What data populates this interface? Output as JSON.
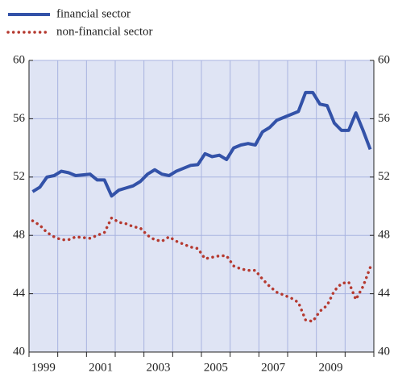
{
  "chart_data": {
    "type": "line",
    "x": [
      1999.125,
      1999.375,
      1999.625,
      1999.875,
      2000.125,
      2000.375,
      2000.625,
      2000.875,
      2001.125,
      2001.375,
      2001.625,
      2001.875,
      2002.125,
      2002.375,
      2002.625,
      2002.875,
      2003.125,
      2003.375,
      2003.625,
      2003.875,
      2004.125,
      2004.375,
      2004.625,
      2004.875,
      2005.125,
      2005.375,
      2005.625,
      2005.875,
      2006.125,
      2006.375,
      2006.625,
      2006.875,
      2007.125,
      2007.375,
      2007.625,
      2007.875,
      2008.125,
      2008.375,
      2008.625,
      2008.875,
      2009.125,
      2009.375,
      2009.625,
      2009.875,
      2010.125,
      2010.375,
      2010.625,
      2010.875
    ],
    "series": [
      {
        "name": "financial sector",
        "color": "#3352a8",
        "dash": "solid",
        "values": [
          51.0,
          51.3,
          52.0,
          52.1,
          52.4,
          52.3,
          52.1,
          52.15,
          52.2,
          51.8,
          51.8,
          50.7,
          51.1,
          51.25,
          51.4,
          51.7,
          52.2,
          52.5,
          52.2,
          52.1,
          52.4,
          52.6,
          52.8,
          52.85,
          53.6,
          53.4,
          53.5,
          53.2,
          54.0,
          54.2,
          54.3,
          54.2,
          55.1,
          55.4,
          55.9,
          56.1,
          56.3,
          56.5,
          57.8,
          57.8,
          57.0,
          56.9,
          55.7,
          55.2,
          55.2,
          56.4,
          55.2,
          53.9
        ]
      },
      {
        "name": "non-financial sector",
        "color": "#b5392f",
        "dash": "dotted",
        "values": [
          49.0,
          48.7,
          48.2,
          47.9,
          47.7,
          47.7,
          47.9,
          47.85,
          47.8,
          48.0,
          48.2,
          49.2,
          48.9,
          48.8,
          48.6,
          48.5,
          48.0,
          47.7,
          47.6,
          47.9,
          47.6,
          47.4,
          47.2,
          47.1,
          46.4,
          46.5,
          46.6,
          46.6,
          45.9,
          45.7,
          45.6,
          45.6,
          45.0,
          44.5,
          44.1,
          43.9,
          43.7,
          43.4,
          42.2,
          42.1,
          42.8,
          43.2,
          44.2,
          44.7,
          44.8,
          43.6,
          44.5,
          45.8
        ]
      }
    ],
    "xlim": [
      1999,
      2011
    ],
    "xticks": [
      {
        "value": 1999.5,
        "label": "1999"
      },
      {
        "value": 2001.5,
        "label": "2001"
      },
      {
        "value": 2003.5,
        "label": "2003"
      },
      {
        "value": 2005.5,
        "label": "2005"
      },
      {
        "value": 2007.5,
        "label": "2007"
      },
      {
        "value": 2009.5,
        "label": "2009"
      }
    ],
    "xgrid": [
      1999,
      2000,
      2001,
      2002,
      2003,
      2004,
      2005,
      2006,
      2007,
      2008,
      2009,
      2010,
      2011
    ],
    "ylim": [
      40,
      60
    ],
    "yticks": [
      40,
      44,
      48,
      52,
      56,
      60
    ],
    "y2lim": [
      40,
      60
    ],
    "y2ticks": [
      40,
      44,
      48,
      52,
      56,
      60
    ],
    "grid": true,
    "legend": "top-left"
  }
}
